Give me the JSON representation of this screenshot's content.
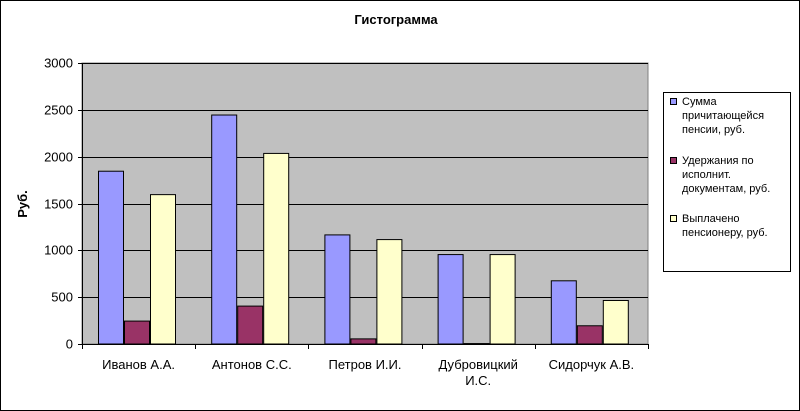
{
  "chart_data": {
    "type": "bar",
    "title": "Гистограмма",
    "ylabel": "Руб.",
    "xlabel": "",
    "ylim": [
      0,
      3000
    ],
    "yticks": [
      0,
      500,
      1000,
      1500,
      2000,
      2500,
      3000
    ],
    "grid": true,
    "legend_position": "right",
    "categories": [
      [
        "Иванов А.А."
      ],
      [
        "Антонов С.С."
      ],
      [
        "Петров И.И."
      ],
      [
        "Дубровицкий",
        "И.С."
      ],
      [
        "Сидорчук А.В."
      ]
    ],
    "series": [
      {
        "name": [
          "Сумма",
          "причитающейся",
          "пенсии, руб."
        ],
        "color": "#9999ff",
        "values": [
          1850,
          2450,
          1170,
          960,
          680
        ]
      },
      {
        "name": [
          "Удержания по",
          "исполнит.",
          "документам, руб."
        ],
        "color": "#993366",
        "values": [
          250,
          410,
          60,
          10,
          200
        ]
      },
      {
        "name": [
          "Выплачено",
          "пенсионеру, руб."
        ],
        "color": "#ffffcc",
        "values": [
          1600,
          2040,
          1120,
          960,
          470
        ]
      }
    ],
    "plot_background": "#c0c0c0"
  }
}
